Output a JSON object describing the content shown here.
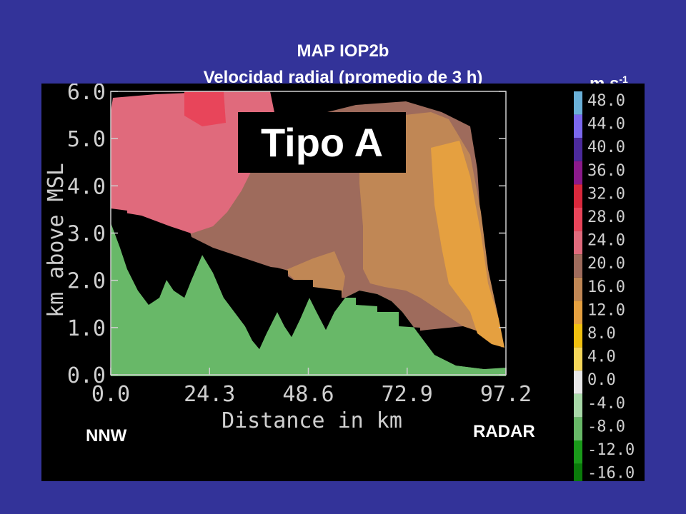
{
  "header": {
    "title": "MAP IOP2b",
    "subtitle": "Velocidad radial (promedio de 3 h)",
    "units_base": "m s",
    "units_exp": "-1"
  },
  "labels": {
    "left": "NNW",
    "right": "RADAR",
    "type_box": "Tipo A"
  },
  "chart_data": {
    "type": "heatmap",
    "xlabel": "Distance in km",
    "ylabel": "km above MSL",
    "xlim": [
      0,
      97.2
    ],
    "ylim": [
      0,
      6
    ],
    "x_ticks": [
      "0.0",
      "24.3",
      "48.6",
      "72.9",
      "97.2"
    ],
    "y_ticks": [
      "0.0",
      "1.0",
      "2.0",
      "3.0",
      "4.0",
      "5.0",
      "6.0"
    ],
    "colorbar": {
      "units": "m s-1",
      "levels": [
        "48.0",
        "44.0",
        "40.0",
        "36.0",
        "32.0",
        "28.0",
        "24.0",
        "20.0",
        "16.0",
        "12.0",
        "8.0",
        "4.0",
        "0.0",
        "-4.0",
        "-8.0",
        "-12.0",
        "-16.0"
      ],
      "colors": [
        "#6ab0d8",
        "#7b68ee",
        "#4b2a9c",
        "#8b1a8b",
        "#d9283c",
        "#e8455a",
        "#e06a7c",
        "#9e6b5c",
        "#c08755",
        "#e5a040",
        "#f0c010",
        "#f5d75a",
        "#e8e8e8",
        "#a8d8a8",
        "#68b868",
        "#1a9a1a",
        "#0a7a0a"
      ]
    },
    "regions": [
      {
        "name": "24 to 28",
        "color": "#e06a7c"
      },
      {
        "name": "28 to 32",
        "color": "#e8455a"
      },
      {
        "name": "20 to 24",
        "color": "#9e6b5c"
      },
      {
        "name": "16 to 20",
        "color": "#c08755"
      },
      {
        "name": "12 to 16",
        "color": "#e5a040"
      },
      {
        "name": "-4 to -8",
        "color": "#68b868"
      }
    ],
    "grid": false
  }
}
